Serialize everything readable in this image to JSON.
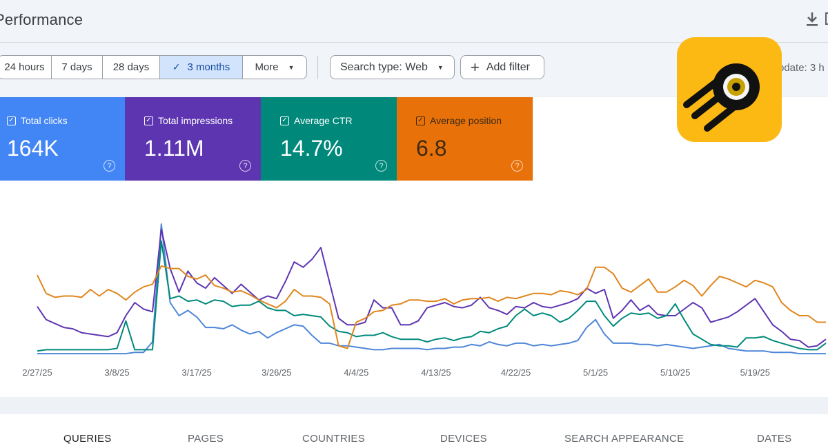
{
  "header": {
    "title": "Performance"
  },
  "filters": {
    "date_ranges": [
      {
        "label": "24 hours",
        "selected": false
      },
      {
        "label": "7 days",
        "selected": false
      },
      {
        "label": "28 days",
        "selected": false
      },
      {
        "label": "3 months",
        "selected": true
      },
      {
        "label": "More",
        "selected": false
      }
    ],
    "search_type": "Search type: Web",
    "add_filter": "Add filter",
    "last_update": "pdate: 3 h"
  },
  "metrics": [
    {
      "label": "Total clicks",
      "value": "164K",
      "color": "#4285f4"
    },
    {
      "label": "Total impressions",
      "value": "1.11M",
      "color": "#5e35b1"
    },
    {
      "label": "Average CTR",
      "value": "14.7%",
      "color": "#00897b"
    },
    {
      "label": "Average position",
      "value": "6.8",
      "color": "#e8710a"
    }
  ],
  "chart_data": {
    "type": "line",
    "title": "",
    "xlabel": "",
    "ylabel": "",
    "x_tick_labels": [
      "2/27/25",
      "3/8/25",
      "3/17/25",
      "3/26/25",
      "4/4/25",
      "4/13/25",
      "4/22/25",
      "5/1/25",
      "5/10/25",
      "5/19/25"
    ],
    "x_tick_indices": [
      0,
      9,
      18,
      27,
      36,
      45,
      54,
      63,
      72,
      81
    ],
    "n_points": 90,
    "ylim": [
      0,
      100
    ],
    "series": [
      {
        "name": "Total clicks",
        "color": "#4e86d8",
        "values": [
          1,
          1,
          1,
          1,
          1,
          1,
          1,
          1,
          1,
          1,
          1,
          2,
          2,
          10,
          100,
          40,
          30,
          34,
          29,
          21,
          21,
          20,
          23,
          19,
          16,
          18,
          13,
          17,
          20,
          23,
          22,
          15,
          9,
          9,
          7,
          7,
          6,
          5,
          4,
          4,
          5,
          5,
          5,
          5,
          4,
          5,
          5,
          6,
          6,
          8,
          7,
          10,
          8,
          7,
          9,
          9,
          7,
          8,
          7,
          8,
          9,
          11,
          21,
          27,
          16,
          9,
          9,
          9,
          8,
          8,
          7,
          8,
          7,
          6,
          5,
          6,
          7,
          8,
          5,
          4,
          3,
          3,
          3,
          2,
          2,
          2,
          1,
          1,
          1,
          1
        ]
      },
      {
        "name": "Total impressions",
        "color": "#5e35b1",
        "values": [
          37,
          27,
          24,
          21,
          20,
          17,
          16,
          15,
          14,
          17,
          30,
          40,
          35,
          33,
          96,
          66,
          48,
          64,
          55,
          51,
          59,
          53,
          47,
          54,
          48,
          42,
          45,
          43,
          56,
          71,
          67,
          73,
          82,
          55,
          28,
          23,
          23,
          25,
          42,
          36,
          36,
          23,
          23,
          26,
          36,
          38,
          40,
          37,
          36,
          38,
          44,
          36,
          34,
          31,
          37,
          36,
          40,
          37,
          36,
          38,
          40,
          43,
          51,
          47,
          50,
          28,
          34,
          42,
          34,
          38,
          31,
          30,
          30,
          35,
          40,
          36,
          25,
          27,
          29,
          33,
          38,
          43,
          33,
          23,
          18,
          12,
          11,
          6,
          7,
          12
        ]
      },
      {
        "name": "Average CTR",
        "color": "#00897b",
        "values": [
          3,
          4,
          4,
          4,
          4,
          4,
          4,
          4,
          4,
          5,
          26,
          4,
          4,
          4,
          87,
          43,
          45,
          41,
          42,
          39,
          42,
          41,
          37,
          38,
          38,
          41,
          36,
          34,
          34,
          30,
          31,
          30,
          29,
          22,
          18,
          17,
          14,
          15,
          15,
          17,
          14,
          12,
          12,
          12,
          10,
          12,
          13,
          11,
          13,
          14,
          18,
          17,
          20,
          22,
          30,
          35,
          30,
          32,
          30,
          25,
          28,
          34,
          41,
          41,
          30,
          22,
          28,
          32,
          31,
          32,
          28,
          30,
          39,
          27,
          16,
          12,
          8,
          7,
          7,
          6,
          13,
          13,
          14,
          11,
          9,
          7,
          5,
          4,
          4,
          9
        ]
      },
      {
        "name": "Average position",
        "color": "#e0861e",
        "values": [
          61,
          47,
          44,
          45,
          45,
          44,
          50,
          45,
          50,
          47,
          42,
          48,
          52,
          54,
          68,
          66,
          66,
          60,
          58,
          61,
          53,
          51,
          48,
          49,
          46,
          42,
          39,
          36,
          41,
          50,
          45,
          45,
          44,
          39,
          7,
          5,
          25,
          28,
          33,
          34,
          38,
          39,
          42,
          42,
          41,
          41,
          43,
          39,
          42,
          43,
          43,
          44,
          41,
          44,
          43,
          45,
          47,
          47,
          46,
          49,
          48,
          46,
          50,
          67,
          67,
          62,
          51,
          48,
          53,
          58,
          48,
          48,
          52,
          57,
          53,
          45,
          53,
          60,
          58,
          55,
          52,
          57,
          55,
          52,
          40,
          34,
          30,
          30,
          25,
          25
        ]
      }
    ]
  },
  "tabs": [
    {
      "label": "QUERIES",
      "active": true
    },
    {
      "label": "PAGES",
      "active": false
    },
    {
      "label": "COUNTRIES",
      "active": false
    },
    {
      "label": "DEVICES",
      "active": false
    },
    {
      "label": "SEARCH APPEARANCE",
      "active": false
    },
    {
      "label": "DATES",
      "active": false
    }
  ]
}
